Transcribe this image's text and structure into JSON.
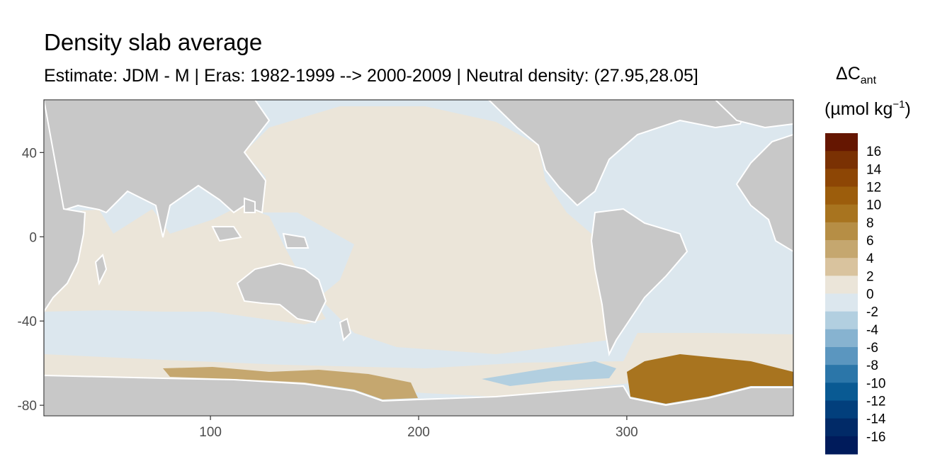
{
  "title": "Density slab average",
  "subtitle": "Estimate: JDM - M | Eras: 1982-1999 --> 2000-2009 | Neutral density: (27.95,28.05]",
  "map": {
    "x_ticks": [
      100,
      200,
      300
    ],
    "y_ticks": [
      40,
      0,
      -40,
      -80
    ],
    "xlim": [
      20,
      380
    ],
    "ylim": [
      -85,
      65
    ],
    "land_color": "#c8c8c8",
    "coast_color": "#ffffff",
    "regions": [
      {
        "name": "ocean-background",
        "value": 0
      },
      {
        "name": "pacific-ocean",
        "value": 1
      },
      {
        "name": "indian-ocean",
        "value": 1
      },
      {
        "name": "north-atlantic",
        "value": -1
      },
      {
        "name": "south-atlantic",
        "value": -1
      },
      {
        "name": "southern-ocean-band",
        "value": -1
      },
      {
        "name": "antarctic-margin",
        "value": 1
      },
      {
        "name": "weddell-sea",
        "value": 9
      },
      {
        "name": "ross-sea",
        "value": 5
      },
      {
        "name": "amundsen-bellingshausen",
        "value": -3
      }
    ]
  },
  "legend": {
    "title_main": "ΔC",
    "title_sub": "ant",
    "units_main": "(µmol kg",
    "units_sup": "−1",
    "units_end": ")",
    "labels": [
      "16",
      "14",
      "12",
      "10",
      "8",
      "6",
      "4",
      "2",
      "0",
      "-2",
      "-4",
      "-6",
      "-8",
      "-10",
      "-12",
      "-14",
      "-16"
    ],
    "colors": [
      "#651601",
      "#7a3103",
      "#8d4605",
      "#9c5d0c",
      "#a8741f",
      "#b68e45",
      "#c5a76f",
      "#d9c39e",
      "#ebe5d9",
      "#dce7ee",
      "#b2cfe0",
      "#87b3d0",
      "#5b96bf",
      "#2b76a9",
      "#095a93",
      "#023f7c",
      "#012a67",
      "#001b5b"
    ]
  }
}
